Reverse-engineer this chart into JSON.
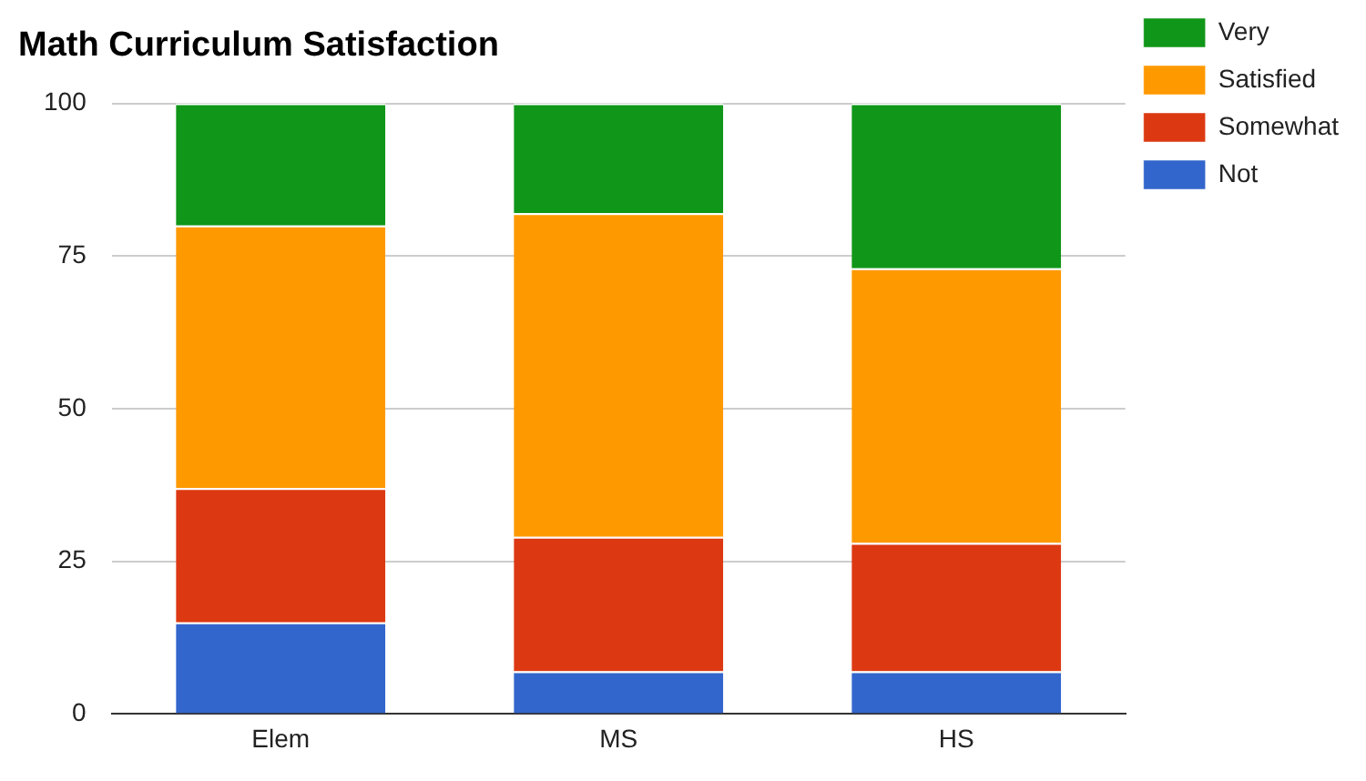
{
  "chart_data": {
    "type": "bar",
    "title": "Math Curriculum Satisfaction",
    "categories": [
      "Elem",
      "MS",
      "HS"
    ],
    "stacked": true,
    "series": [
      {
        "name": "Not",
        "color": "#3366cc",
        "values": [
          15,
          7,
          7
        ]
      },
      {
        "name": "Somewhat",
        "color": "#dc3912",
        "values": [
          22,
          22,
          21
        ]
      },
      {
        "name": "Satisfied",
        "color": "#ff9900",
        "values": [
          43,
          53,
          45
        ]
      },
      {
        "name": "Very",
        "color": "#109618",
        "values": [
          20,
          18,
          27
        ]
      }
    ],
    "ylim": [
      0,
      100
    ],
    "yticks": [
      0,
      25,
      50,
      75,
      100
    ],
    "grid": "y",
    "legend": "right"
  }
}
